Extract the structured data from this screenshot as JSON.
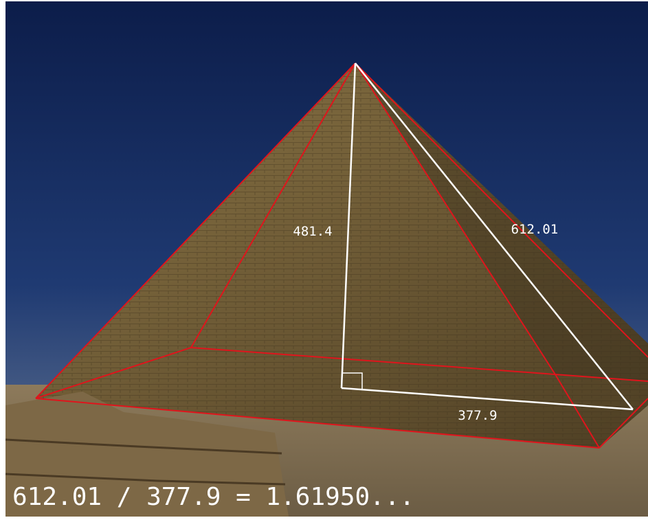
{
  "annotations": {
    "height": "481.4",
    "slant": "612.01",
    "half_base": "377.9",
    "ratio": "612.01 / 377.9 = 1.61950..."
  }
}
